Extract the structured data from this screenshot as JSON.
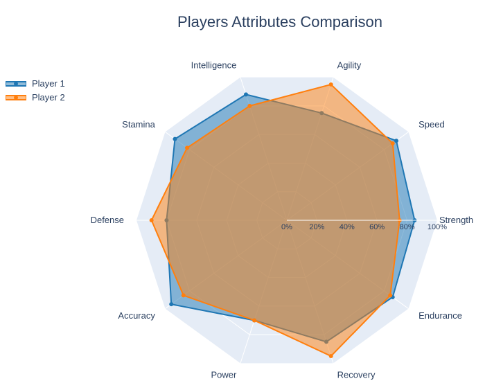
{
  "chart_data": {
    "type": "radar",
    "title": "Players Attributes Comparison",
    "categories": [
      "Strength",
      "Speed",
      "Agility",
      "Intelligence",
      "Stamina",
      "Defense",
      "Accuracy",
      "Power",
      "Recovery",
      "Endurance"
    ],
    "radial_ticks": [
      "0%",
      "20%",
      "40%",
      "60%",
      "80%",
      "100%"
    ],
    "radial_range": [
      0,
      100
    ],
    "series": [
      {
        "name": "Player 1",
        "color": "#1f77b4",
        "values": [
          85,
          90,
          75,
          88,
          92,
          80,
          95,
          70,
          85,
          87
        ]
      },
      {
        "name": "Player 2",
        "color": "#ff7f0e",
        "values": [
          75,
          87,
          95,
          80,
          82,
          90,
          85,
          70,
          95,
          85
        ]
      }
    ],
    "legend_position": "top-left",
    "grid": true
  }
}
